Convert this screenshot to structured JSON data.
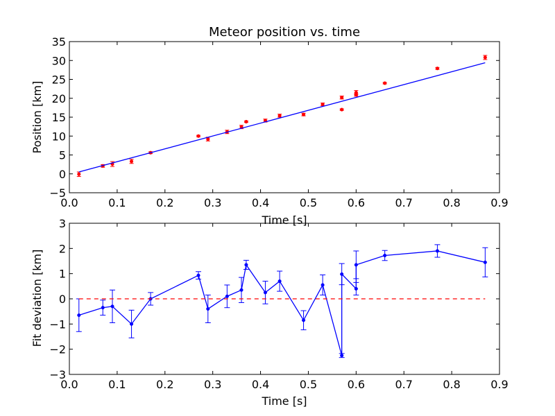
{
  "chart_data": [
    {
      "type": "scatter",
      "title": "Meteor position vs. time",
      "xlabel": "Time [s]",
      "ylabel": "Position [km]",
      "xlim": [
        0,
        0.9
      ],
      "ylim": [
        -5,
        35
      ],
      "xticks": [
        0,
        0.1,
        0.2,
        0.3,
        0.4,
        0.5,
        0.6,
        0.7,
        0.8,
        0.9
      ],
      "xtick_labels": [
        "0.0",
        "0.1",
        "0.2",
        "0.3",
        "0.4",
        "0.5",
        "0.6",
        "0.7",
        "0.8",
        "0.9"
      ],
      "yticks": [
        -5,
        0,
        5,
        10,
        15,
        20,
        25,
        30,
        35
      ],
      "ytick_labels": [
        "−5",
        "0",
        "5",
        "10",
        "15",
        "20",
        "25",
        "30",
        "35"
      ],
      "grid": false,
      "series": [
        {
          "kind": "errorbar-points",
          "color": "#ff0000",
          "x": [
            0.02,
            0.07,
            0.09,
            0.13,
            0.17,
            0.27,
            0.29,
            0.33,
            0.36,
            0.37,
            0.41,
            0.44,
            0.49,
            0.53,
            0.57,
            0.57,
            0.6,
            0.6,
            0.66,
            0.77,
            0.87
          ],
          "y": [
            -0.1,
            2.1,
            2.6,
            3.3,
            5.6,
            10.0,
            9.2,
            11.1,
            12.4,
            13.8,
            14.1,
            15.4,
            15.7,
            18.4,
            17.0,
            20.2,
            21.5,
            20.9,
            24.0,
            27.9,
            30.8
          ],
          "yerr": [
            0.6,
            0.35,
            0.65,
            0.55,
            0.25,
            0.2,
            0.5,
            0.45,
            0.45,
            0.2,
            0.4,
            0.4,
            0.35,
            0.35,
            0.2,
            0.4,
            0.55,
            0.35,
            0.2,
            0.25,
            0.55
          ]
        },
        {
          "kind": "fit-line",
          "color": "#0000ff",
          "x": [
            0.02,
            0.87
          ],
          "y": [
            0.5,
            29.4
          ]
        }
      ]
    },
    {
      "type": "line",
      "title": "",
      "xlabel": "Time [s]",
      "ylabel": "Fit deviation [km]",
      "xlim": [
        0,
        0.9
      ],
      "ylim": [
        -3,
        3
      ],
      "xticks": [
        0,
        0.1,
        0.2,
        0.3,
        0.4,
        0.5,
        0.6,
        0.7,
        0.8,
        0.9
      ],
      "xtick_labels": [
        "0.0",
        "0.1",
        "0.2",
        "0.3",
        "0.4",
        "0.5",
        "0.6",
        "0.7",
        "0.8",
        "0.9"
      ],
      "yticks": [
        -3,
        -2,
        -1,
        0,
        1,
        2,
        3
      ],
      "ytick_labels": [
        "−3",
        "−2",
        "−1",
        "0",
        "1",
        "2",
        "3"
      ],
      "grid": false,
      "series": [
        {
          "kind": "errorbar-line",
          "color": "#0000ff",
          "x": [
            0.02,
            0.07,
            0.09,
            0.13,
            0.17,
            0.27,
            0.29,
            0.33,
            0.36,
            0.37,
            0.41,
            0.44,
            0.49,
            0.53,
            0.57,
            0.57,
            0.6,
            0.6,
            0.66,
            0.77,
            0.87
          ],
          "y": [
            -0.65,
            -0.35,
            -0.3,
            -1.0,
            0.0,
            0.93,
            -0.4,
            0.1,
            0.35,
            1.35,
            0.25,
            0.7,
            -0.85,
            0.55,
            -2.25,
            0.98,
            0.4,
            1.35,
            1.72,
            1.9,
            1.45
          ],
          "yerr": [
            0.65,
            0.3,
            0.65,
            0.55,
            0.25,
            0.15,
            0.55,
            0.45,
            0.5,
            0.18,
            0.45,
            0.4,
            0.38,
            0.4,
            0.08,
            0.42,
            0.25,
            0.55,
            0.2,
            0.25,
            0.58
          ]
        },
        {
          "kind": "zero-line",
          "color": "#ff0000",
          "dashed": true,
          "x": [
            0.02,
            0.87
          ],
          "y": [
            0,
            0
          ]
        }
      ]
    }
  ]
}
